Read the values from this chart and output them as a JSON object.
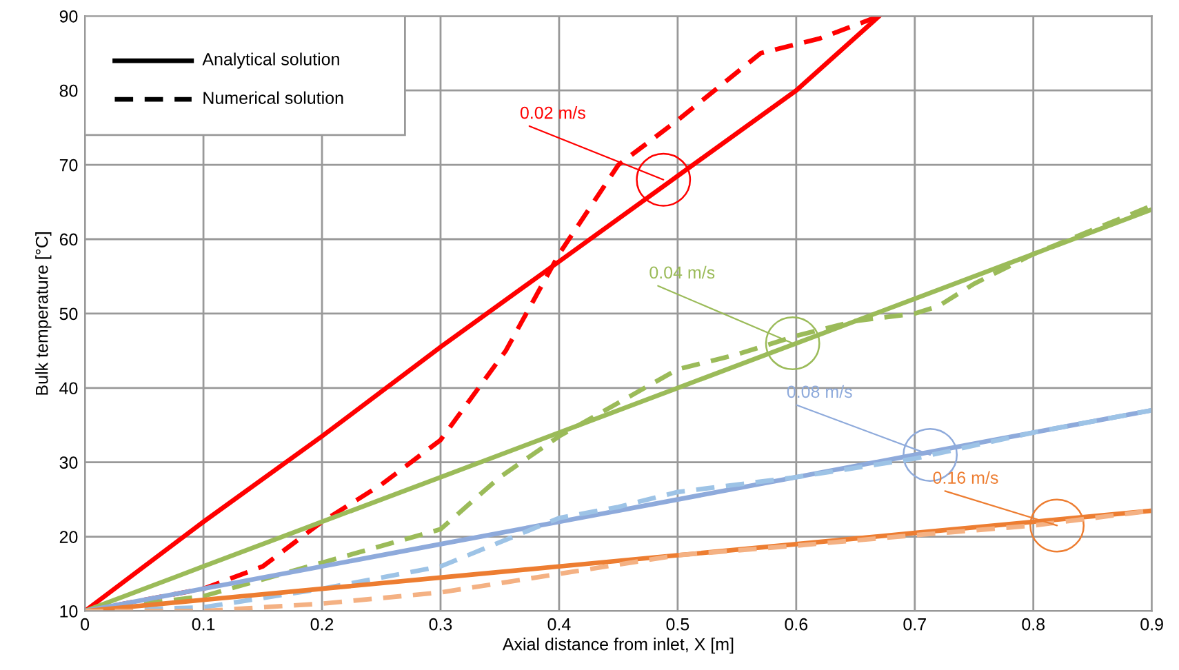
{
  "chart_data": {
    "type": "line",
    "xlabel": "Axial distance from inlet, X [m]",
    "ylabel": "Bulk temperature [°C]",
    "xlim": [
      0,
      0.9
    ],
    "xticks": [
      0,
      0.1,
      0.2,
      0.3,
      0.4,
      0.5,
      0.6,
      0.7,
      0.8,
      0.9
    ],
    "ylim": [
      10,
      90
    ],
    "yticks": [
      10,
      20,
      30,
      40,
      50,
      60,
      70,
      80,
      90
    ],
    "grid": true,
    "marker": "none",
    "series": [
      {
        "line_style": "solid",
        "color": "#ff0000",
        "x": [
          0,
          0.1,
          0.2,
          0.3,
          0.4,
          0.5,
          0.6,
          0.67
        ],
        "values": [
          10,
          22,
          33.5,
          45.5,
          57,
          68.5,
          80,
          90
        ]
      },
      {
        "line_style": "dashed",
        "color": "#ff0000",
        "x": [
          0,
          0.05,
          0.1,
          0.15,
          0.2,
          0.25,
          0.3,
          0.355,
          0.4,
          0.45,
          0.5,
          0.57,
          0.62,
          0.67
        ],
        "values": [
          10,
          11.5,
          13,
          16,
          22,
          27,
          33,
          45,
          58,
          70,
          76,
          85,
          87,
          90
        ]
      },
      {
        "line_style": "solid",
        "color": "#9bbb59",
        "x": [
          0,
          0.1,
          0.2,
          0.3,
          0.4,
          0.5,
          0.6,
          0.7,
          0.8,
          0.9
        ],
        "values": [
          10,
          16,
          22,
          28,
          34,
          40,
          46,
          52,
          58,
          64
        ]
      },
      {
        "line_style": "dashed",
        "color": "#9bbb59",
        "x": [
          0,
          0.1,
          0.2,
          0.3,
          0.35,
          0.4,
          0.45,
          0.5,
          0.55,
          0.6,
          0.65,
          0.7,
          0.72,
          0.75,
          0.8,
          0.9
        ],
        "values": [
          10,
          12,
          16.5,
          21,
          28,
          33.5,
          38,
          42.5,
          44.5,
          47,
          49,
          50,
          51,
          54,
          58,
          64.5
        ]
      },
      {
        "line_style": "solid",
        "color": "#8eaadb",
        "x": [
          0,
          0.1,
          0.2,
          0.3,
          0.4,
          0.5,
          0.6,
          0.7,
          0.8,
          0.9
        ],
        "values": [
          10,
          13,
          16,
          19,
          22,
          25,
          28,
          31,
          34,
          37
        ]
      },
      {
        "line_style": "dashed",
        "color": "#9dc3e6",
        "x": [
          0,
          0.1,
          0.2,
          0.3,
          0.4,
          0.45,
          0.5,
          0.6,
          0.7,
          0.8,
          0.9
        ],
        "values": [
          10,
          10.5,
          13,
          16,
          22.5,
          24,
          26,
          28,
          30.5,
          34,
          37
        ]
      },
      {
        "line_style": "solid",
        "color": "#ed7d31",
        "x": [
          0,
          0.1,
          0.2,
          0.3,
          0.4,
          0.5,
          0.6,
          0.7,
          0.8,
          0.9
        ],
        "values": [
          10,
          11.5,
          13,
          14.5,
          16,
          17.5,
          19,
          20.5,
          22,
          23.5
        ]
      },
      {
        "line_style": "dashed",
        "color": "#f4b183",
        "x": [
          0,
          0.1,
          0.2,
          0.3,
          0.4,
          0.5,
          0.6,
          0.7,
          0.8,
          0.9
        ],
        "values": [
          10,
          10,
          11,
          12.5,
          15,
          17.5,
          18.8,
          20.2,
          21.5,
          23.5
        ]
      }
    ],
    "annotations": [
      "Analytical solution",
      "Numerical solution",
      {
        "text": "0.02 m/s",
        "x": 0.488,
        "y": 68
      },
      {
        "text": "0.04 m/s",
        "x": 0.597,
        "y": 46
      },
      {
        "text": "0.08 m/s",
        "x": 0.713,
        "y": 31
      },
      {
        "text": "0.16 m/s",
        "x": 0.82,
        "y": 21.5
      }
    ]
  }
}
